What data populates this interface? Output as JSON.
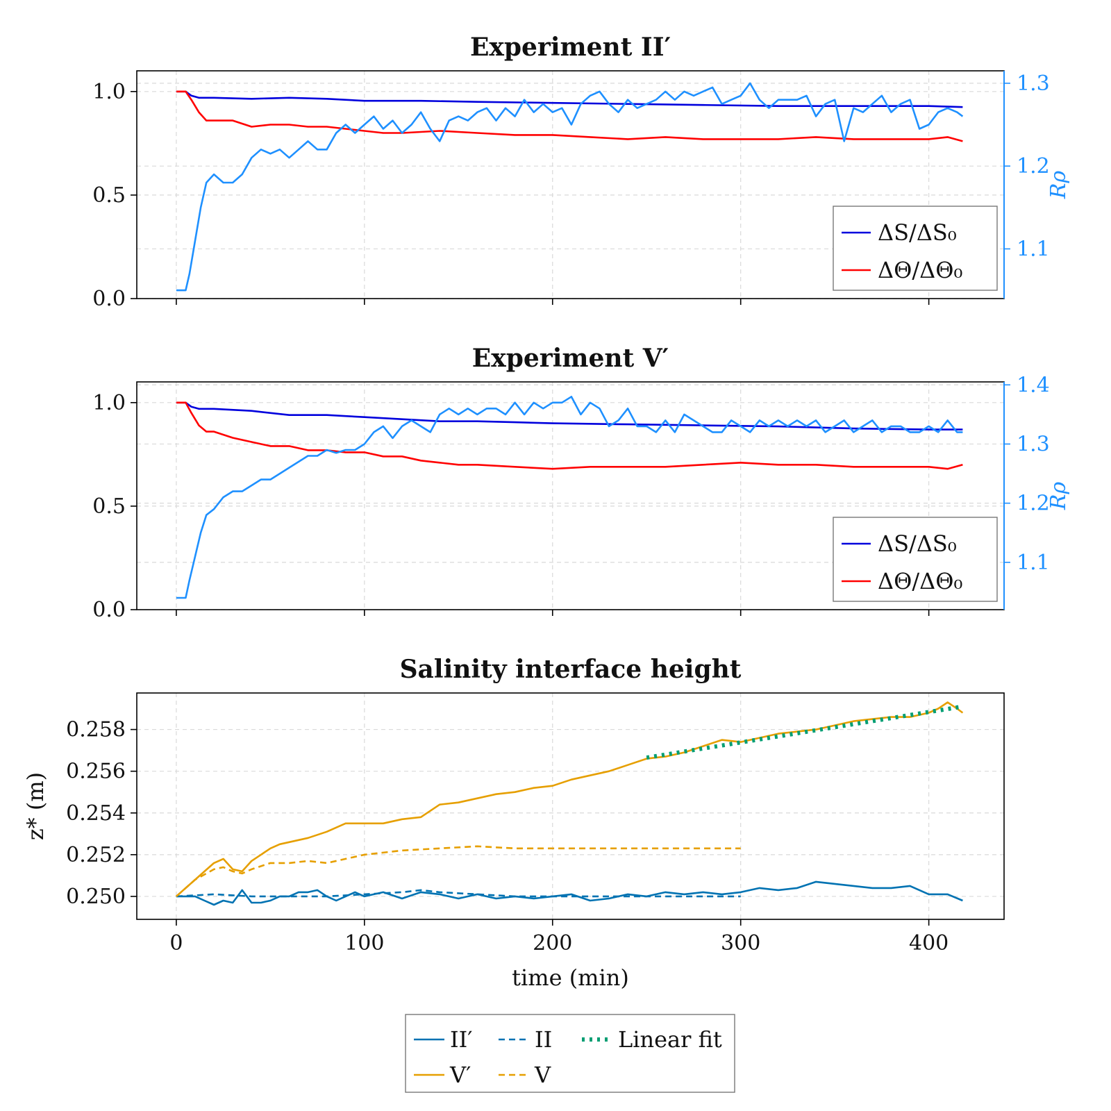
{
  "colors": {
    "salinity": "#0000dd",
    "temperature": "#ff0000",
    "rrho": "#1e90ff",
    "exp2": "#0072b2",
    "exp5": "#e69f00",
    "fit": "#009e73"
  },
  "xaxis": {
    "label": "time (min)",
    "ticks": [
      0,
      100,
      200,
      300,
      400
    ],
    "tick_labels": [
      "0",
      "100",
      "200",
      "300",
      "400"
    ],
    "lim": [
      -21,
      440
    ]
  },
  "legend_ratio": {
    "salinity": "ΔS/ΔS₀",
    "temperature": "ΔΘ/ΔΘ₀"
  },
  "legend_bottom": {
    "ii_prime": "II′",
    "ii": "II",
    "fit": "Linear fit",
    "v_prime": "V′",
    "v": "V"
  },
  "chart_data": [
    {
      "type": "line",
      "title": "Experiment II′",
      "ylim": [
        0,
        1.1
      ],
      "yticks": [
        0.0,
        0.5,
        1.0
      ],
      "ytick_labels": [
        "0.0",
        "0.5",
        "1.0"
      ],
      "y2label": "Rρ",
      "y2lim": [
        1.04,
        1.315
      ],
      "y2ticks": [
        1.1,
        1.2,
        1.3
      ],
      "y2tick_labels": [
        "1.1",
        "1.2",
        "1.3"
      ],
      "legend_position": "bottom-right",
      "series": [
        {
          "name": "ΔS/ΔS₀",
          "axis": "left",
          "x": [
            0,
            5,
            8,
            12,
            20,
            40,
            60,
            80,
            100,
            130,
            160,
            200,
            240,
            280,
            320,
            360,
            400,
            418
          ],
          "y": [
            1.0,
            1.0,
            0.98,
            0.97,
            0.97,
            0.965,
            0.97,
            0.965,
            0.955,
            0.955,
            0.95,
            0.945,
            0.94,
            0.935,
            0.93,
            0.93,
            0.93,
            0.925
          ]
        },
        {
          "name": "ΔΘ/ΔΘ₀",
          "axis": "left",
          "x": [
            0,
            5,
            8,
            12,
            16,
            20,
            30,
            40,
            50,
            60,
            70,
            80,
            90,
            100,
            110,
            120,
            140,
            160,
            180,
            200,
            220,
            240,
            260,
            280,
            300,
            320,
            340,
            360,
            380,
            400,
            410,
            418
          ],
          "y": [
            1.0,
            1.0,
            0.96,
            0.9,
            0.86,
            0.86,
            0.86,
            0.83,
            0.84,
            0.84,
            0.83,
            0.83,
            0.82,
            0.81,
            0.8,
            0.8,
            0.81,
            0.8,
            0.79,
            0.79,
            0.78,
            0.77,
            0.78,
            0.77,
            0.77,
            0.77,
            0.78,
            0.77,
            0.77,
            0.77,
            0.78,
            0.76
          ]
        },
        {
          "name": "Rρ",
          "axis": "right",
          "x": [
            0,
            5,
            7,
            10,
            13,
            16,
            20,
            25,
            30,
            35,
            40,
            45,
            50,
            55,
            60,
            65,
            70,
            75,
            80,
            85,
            90,
            95,
            100,
            105,
            110,
            115,
            120,
            125,
            130,
            135,
            140,
            145,
            150,
            155,
            160,
            165,
            170,
            175,
            180,
            185,
            190,
            195,
            200,
            205,
            210,
            215,
            220,
            225,
            230,
            235,
            240,
            245,
            250,
            255,
            260,
            265,
            270,
            275,
            280,
            285,
            290,
            295,
            300,
            305,
            310,
            315,
            320,
            325,
            330,
            335,
            340,
            345,
            350,
            355,
            360,
            365,
            370,
            375,
            380,
            385,
            390,
            395,
            400,
            405,
            410,
            415,
            418
          ],
          "y": [
            1.05,
            1.05,
            1.07,
            1.11,
            1.15,
            1.18,
            1.19,
            1.18,
            1.18,
            1.19,
            1.21,
            1.22,
            1.215,
            1.22,
            1.21,
            1.22,
            1.23,
            1.22,
            1.22,
            1.24,
            1.25,
            1.24,
            1.25,
            1.26,
            1.245,
            1.255,
            1.24,
            1.25,
            1.265,
            1.245,
            1.23,
            1.255,
            1.26,
            1.255,
            1.265,
            1.27,
            1.255,
            1.27,
            1.26,
            1.28,
            1.265,
            1.275,
            1.265,
            1.27,
            1.25,
            1.275,
            1.285,
            1.29,
            1.275,
            1.265,
            1.28,
            1.27,
            1.275,
            1.28,
            1.29,
            1.28,
            1.29,
            1.285,
            1.29,
            1.295,
            1.275,
            1.28,
            1.285,
            1.3,
            1.28,
            1.27,
            1.28,
            1.28,
            1.28,
            1.285,
            1.26,
            1.275,
            1.28,
            1.23,
            1.27,
            1.265,
            1.275,
            1.285,
            1.265,
            1.275,
            1.28,
            1.245,
            1.25,
            1.265,
            1.27,
            1.265,
            1.26
          ]
        }
      ]
    },
    {
      "type": "line",
      "title": "Experiment V′",
      "ylim": [
        0,
        1.1
      ],
      "yticks": [
        0.0,
        0.5,
        1.0
      ],
      "ytick_labels": [
        "0.0",
        "0.5",
        "1.0"
      ],
      "y2label": "Rρ",
      "y2lim": [
        1.02,
        1.405
      ],
      "y2ticks": [
        1.1,
        1.2,
        1.3,
        1.4
      ],
      "y2tick_labels": [
        "1.1",
        "1.2",
        "1.3",
        "1.4"
      ],
      "legend_position": "bottom-right",
      "series": [
        {
          "name": "ΔS/ΔS₀",
          "axis": "left",
          "x": [
            0,
            5,
            8,
            12,
            20,
            40,
            60,
            80,
            100,
            120,
            140,
            160,
            180,
            200,
            240,
            280,
            320,
            360,
            400,
            418
          ],
          "y": [
            1.0,
            1.0,
            0.98,
            0.97,
            0.97,
            0.96,
            0.94,
            0.94,
            0.93,
            0.92,
            0.91,
            0.91,
            0.905,
            0.9,
            0.895,
            0.89,
            0.885,
            0.875,
            0.87,
            0.87
          ]
        },
        {
          "name": "ΔΘ/ΔΘ₀",
          "axis": "left",
          "x": [
            0,
            5,
            8,
            12,
            16,
            20,
            30,
            40,
            50,
            60,
            70,
            80,
            90,
            100,
            110,
            120,
            130,
            140,
            150,
            160,
            180,
            200,
            220,
            240,
            260,
            280,
            300,
            320,
            340,
            360,
            380,
            400,
            410,
            418
          ],
          "y": [
            1.0,
            1.0,
            0.95,
            0.89,
            0.86,
            0.86,
            0.83,
            0.81,
            0.79,
            0.79,
            0.77,
            0.77,
            0.76,
            0.76,
            0.74,
            0.74,
            0.72,
            0.71,
            0.7,
            0.7,
            0.69,
            0.68,
            0.69,
            0.69,
            0.69,
            0.7,
            0.71,
            0.7,
            0.7,
            0.69,
            0.69,
            0.69,
            0.68,
            0.7
          ]
        },
        {
          "name": "Rρ",
          "axis": "right",
          "x": [
            0,
            5,
            7,
            10,
            13,
            16,
            20,
            25,
            30,
            35,
            40,
            45,
            50,
            55,
            60,
            65,
            70,
            75,
            80,
            85,
            90,
            95,
            100,
            105,
            110,
            115,
            120,
            125,
            130,
            135,
            140,
            145,
            150,
            155,
            160,
            165,
            170,
            175,
            180,
            185,
            190,
            195,
            200,
            205,
            210,
            215,
            220,
            225,
            230,
            235,
            240,
            245,
            250,
            255,
            260,
            265,
            270,
            275,
            280,
            285,
            290,
            295,
            300,
            305,
            310,
            315,
            320,
            325,
            330,
            335,
            340,
            345,
            350,
            355,
            360,
            365,
            370,
            375,
            380,
            385,
            390,
            395,
            400,
            405,
            410,
            415,
            418
          ],
          "y": [
            1.04,
            1.04,
            1.07,
            1.11,
            1.15,
            1.18,
            1.19,
            1.21,
            1.22,
            1.22,
            1.23,
            1.24,
            1.24,
            1.25,
            1.26,
            1.27,
            1.28,
            1.28,
            1.29,
            1.285,
            1.29,
            1.29,
            1.3,
            1.32,
            1.33,
            1.31,
            1.33,
            1.34,
            1.33,
            1.32,
            1.35,
            1.36,
            1.35,
            1.36,
            1.35,
            1.36,
            1.36,
            1.35,
            1.37,
            1.35,
            1.37,
            1.36,
            1.37,
            1.37,
            1.38,
            1.35,
            1.37,
            1.36,
            1.33,
            1.34,
            1.36,
            1.33,
            1.33,
            1.32,
            1.34,
            1.32,
            1.35,
            1.34,
            1.33,
            1.32,
            1.32,
            1.34,
            1.33,
            1.32,
            1.34,
            1.33,
            1.34,
            1.33,
            1.34,
            1.33,
            1.34,
            1.32,
            1.33,
            1.34,
            1.32,
            1.33,
            1.34,
            1.32,
            1.33,
            1.33,
            1.32,
            1.32,
            1.33,
            1.32,
            1.34,
            1.32,
            1.32
          ]
        }
      ]
    },
    {
      "type": "line",
      "title": "Salinity interface height",
      "xlabel": "time (min)",
      "ylabel": "z* (m)",
      "ylim": [
        0.2489,
        0.25975
      ],
      "yticks": [
        0.25,
        0.252,
        0.254,
        0.256,
        0.258
      ],
      "ytick_labels": [
        "0.250",
        "0.252",
        "0.254",
        "0.256",
        "0.258"
      ],
      "legend_position": "bottom-center, outside",
      "series": [
        {
          "name": "II′",
          "style": "solid",
          "x": [
            0,
            5,
            10,
            15,
            20,
            25,
            30,
            35,
            40,
            45,
            50,
            55,
            60,
            65,
            70,
            75,
            80,
            85,
            90,
            95,
            100,
            110,
            120,
            130,
            140,
            150,
            160,
            170,
            180,
            190,
            200,
            210,
            220,
            230,
            240,
            250,
            260,
            270,
            280,
            290,
            300,
            310,
            320,
            330,
            340,
            350,
            360,
            370,
            380,
            390,
            400,
            410,
            418
          ],
          "y": [
            0.25,
            0.25,
            0.25,
            0.2498,
            0.2496,
            0.2498,
            0.2497,
            0.2503,
            0.2497,
            0.2497,
            0.2498,
            0.25,
            0.25,
            0.2502,
            0.2502,
            0.2503,
            0.25,
            0.2498,
            0.25,
            0.2502,
            0.25,
            0.2502,
            0.2499,
            0.2502,
            0.2501,
            0.2499,
            0.2501,
            0.2499,
            0.25,
            0.2499,
            0.25,
            0.2501,
            0.2498,
            0.2499,
            0.2501,
            0.25,
            0.2502,
            0.2501,
            0.2502,
            0.2501,
            0.2502,
            0.2504,
            0.2503,
            0.2504,
            0.2507,
            0.2506,
            0.2505,
            0.2504,
            0.2504,
            0.2505,
            0.2501,
            0.2501,
            0.2498
          ]
        },
        {
          "name": "II",
          "style": "dashed",
          "x": [
            0,
            20,
            40,
            60,
            80,
            100,
            120,
            130,
            140,
            160,
            180,
            200,
            220,
            240,
            260,
            280,
            300
          ],
          "y": [
            0.25,
            0.2501,
            0.25,
            0.25,
            0.25,
            0.2501,
            0.2502,
            0.2503,
            0.2502,
            0.2501,
            0.25,
            0.25,
            0.25,
            0.25,
            0.25,
            0.25,
            0.25
          ]
        },
        {
          "name": "V′",
          "style": "solid",
          "x": [
            0,
            5,
            10,
            15,
            20,
            25,
            30,
            35,
            40,
            45,
            50,
            55,
            60,
            70,
            80,
            90,
            100,
            110,
            120,
            130,
            140,
            150,
            160,
            170,
            180,
            190,
            200,
            210,
            220,
            230,
            240,
            250,
            260,
            270,
            280,
            290,
            300,
            310,
            320,
            330,
            340,
            350,
            360,
            370,
            380,
            390,
            400,
            405,
            410,
            415,
            418
          ],
          "y": [
            0.25,
            0.2504,
            0.2508,
            0.2512,
            0.2516,
            0.2518,
            0.2513,
            0.2512,
            0.2517,
            0.252,
            0.2523,
            0.2525,
            0.2526,
            0.2528,
            0.2531,
            0.2535,
            0.2535,
            0.2535,
            0.2537,
            0.2538,
            0.2544,
            0.2545,
            0.2547,
            0.2549,
            0.255,
            0.2552,
            0.2553,
            0.2556,
            0.2558,
            0.256,
            0.2563,
            0.2566,
            0.2567,
            0.2569,
            0.2572,
            0.2575,
            0.2574,
            0.2576,
            0.2578,
            0.2579,
            0.258,
            0.2582,
            0.2584,
            0.2585,
            0.2586,
            0.2586,
            0.2588,
            0.259,
            0.2593,
            0.259,
            0.2588
          ]
        },
        {
          "name": "V",
          "style": "dashed",
          "x": [
            0,
            10,
            20,
            25,
            30,
            35,
            40,
            50,
            60,
            70,
            80,
            90,
            100,
            120,
            140,
            160,
            180,
            200,
            220,
            240,
            260,
            280,
            300
          ],
          "y": [
            0.25,
            0.2508,
            0.2513,
            0.2514,
            0.2512,
            0.2511,
            0.2513,
            0.2516,
            0.2516,
            0.2517,
            0.2516,
            0.2518,
            0.252,
            0.2522,
            0.2523,
            0.2524,
            0.2523,
            0.2523,
            0.2523,
            0.2523,
            0.2523,
            0.2523,
            0.2523
          ]
        },
        {
          "name": "Linear fit",
          "style": "dotted",
          "x": [
            250,
            418
          ],
          "y": [
            0.25665,
            0.2591
          ]
        }
      ]
    }
  ]
}
